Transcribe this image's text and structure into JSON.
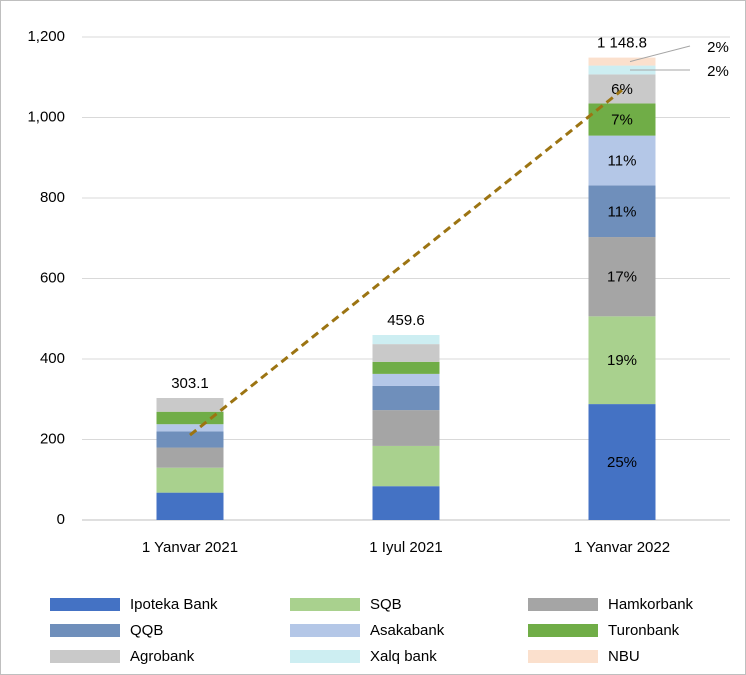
{
  "chart_data": {
    "type": "stacked_bar",
    "categories": [
      "1 Yanvar 2021",
      "1 Iyul 2021",
      "1 Yanvar 2022"
    ],
    "series": [
      {
        "name": "Ipoteka Bank",
        "color": "#4472c4",
        "values": [
          68,
          84,
          288
        ],
        "value_labels": [
          null,
          null,
          "25%"
        ]
      },
      {
        "name": "SQB",
        "color": "#a9d18e",
        "values": [
          62,
          100,
          218
        ],
        "value_labels": [
          null,
          null,
          "19%"
        ]
      },
      {
        "name": "Hamkorbank",
        "color": "#a5a5a5",
        "values": [
          50,
          89,
          197
        ],
        "value_labels": [
          null,
          null,
          "17%"
        ]
      },
      {
        "name": "QQB",
        "color": "#6f8fbb",
        "values": [
          40,
          60,
          128
        ],
        "value_labels": [
          null,
          null,
          "11%"
        ]
      },
      {
        "name": "Asakabank",
        "color": "#b4c7e7",
        "values": [
          18,
          30,
          124
        ],
        "value_labels": [
          null,
          null,
          "11%"
        ]
      },
      {
        "name": "Turonbank",
        "color": "#70ad47",
        "values": [
          31,
          30,
          80
        ],
        "value_labels": [
          null,
          null,
          "7%"
        ]
      },
      {
        "name": "Agrobank",
        "color": "#c9c9c9",
        "values": [
          34.1,
          44,
          72
        ],
        "value_labels": [
          null,
          null,
          "6%"
        ]
      },
      {
        "name": "Xalq bank",
        "color": "#cdeef2",
        "values": [
          0,
          22.6,
          22
        ],
        "value_labels": [
          null,
          null,
          "2%"
        ]
      },
      {
        "name": "NBU",
        "color": "#fbe0cd",
        "values": [
          0,
          0,
          19.8
        ],
        "value_labels": [
          null,
          null,
          "2%"
        ]
      }
    ],
    "totals": [
      303.1,
      459.6,
      1148.8
    ],
    "total_labels": [
      "303.1",
      "459.6",
      "1 148.8"
    ],
    "trendline": {
      "color": "#9c7412",
      "values": [
        211,
        640,
        1068
      ]
    },
    "ylim": [
      0,
      1200
    ],
    "yticks": [
      0,
      200,
      400,
      600,
      800,
      {
        "value": 1000,
        "label": "1,000"
      },
      {
        "value": 1200,
        "label": "1,200"
      }
    ],
    "grid": true,
    "legend": "bottom"
  }
}
